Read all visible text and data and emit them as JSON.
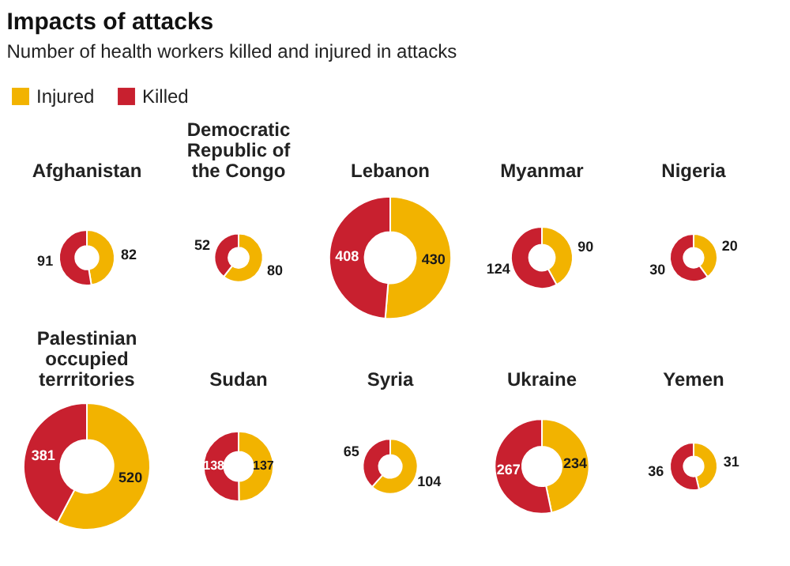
{
  "chart_data": [
    {
      "type": "other",
      "title": "Impacts of attacks",
      "subtitle": "Number of health workers killed and injured in attacks"
    },
    {
      "type": "donut",
      "title": "Afghanistan",
      "categories": [
        "Injured",
        "Killed"
      ],
      "values": [
        82,
        91
      ],
      "colors": [
        "#f2b300",
        "#c8202f"
      ],
      "data_labels": true,
      "legend": "top"
    },
    {
      "type": "donut",
      "title": "Democratic Republic of the Congo",
      "values": [
        80,
        52
      ],
      "colors": [
        "#f2b300",
        "#c8202f"
      ],
      "data_labels": true
    },
    {
      "type": "donut",
      "title": "Lebanon",
      "values": [
        430,
        408
      ],
      "colors": [
        "#f2b300",
        "#c8202f"
      ],
      "data_labels": true
    },
    {
      "type": "donut",
      "title": "Myanmar",
      "values": [
        90,
        124
      ],
      "colors": [
        "#f2b300",
        "#c8202f"
      ],
      "data_labels": true
    },
    {
      "type": "donut",
      "title": "Nigeria",
      "values": [
        20,
        30
      ],
      "colors": [
        "#f2b300",
        "#c8202f"
      ],
      "data_labels": true
    },
    {
      "type": "donut",
      "title": "Palestinian occupied terrritories",
      "values": [
        520,
        381
      ],
      "colors": [
        "#f2b300",
        "#c8202f"
      ],
      "data_labels": true
    },
    {
      "type": "donut",
      "title": "Sudan",
      "values": [
        137,
        138
      ],
      "colors": [
        "#f2b300",
        "#c8202f"
      ],
      "data_labels": true
    },
    {
      "type": "donut",
      "title": "Syria",
      "values": [
        104,
        65
      ],
      "colors": [
        "#f2b300",
        "#c8202f"
      ],
      "data_labels": true
    },
    {
      "type": "donut",
      "title": "Ukraine",
      "values": [
        234,
        267
      ],
      "colors": [
        "#f2b300",
        "#c8202f"
      ],
      "data_labels": true
    },
    {
      "type": "donut",
      "title": "Yemen",
      "values": [
        31,
        36
      ],
      "colors": [
        "#f2b300",
        "#c8202f"
      ],
      "data_labels": true
    }
  ]
}
